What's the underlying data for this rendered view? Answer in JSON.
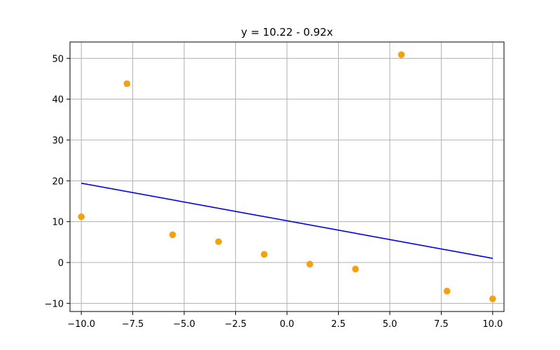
{
  "chart_data": {
    "type": "scatter",
    "title": "y = 10.22 - 0.92x",
    "xlabel": "",
    "ylabel": "",
    "xlim": [
      -10.55,
      10.55
    ],
    "ylim": [
      -12.0,
      54.0
    ],
    "grid": true,
    "x_ticks": [
      -10.0,
      -7.5,
      -5.0,
      -2.5,
      0.0,
      2.5,
      5.0,
      7.5,
      10.0
    ],
    "x_tick_labels": [
      "−10.0",
      "−7.5",
      "−5.0",
      "−2.5",
      "0.0",
      "2.5",
      "5.0",
      "7.5",
      "10.0"
    ],
    "y_ticks": [
      -10,
      0,
      10,
      20,
      30,
      40,
      50
    ],
    "y_tick_labels": [
      "−10",
      "0",
      "10",
      "20",
      "30",
      "40",
      "50"
    ],
    "series": [
      {
        "kind": "scatter",
        "color": "#f5a00e",
        "x": [
          -10.0,
          -7.78,
          -5.56,
          -3.33,
          -1.11,
          1.11,
          3.33,
          5.56,
          7.78,
          10.0
        ],
        "y": [
          11.2,
          43.8,
          6.8,
          5.1,
          2.0,
          -0.4,
          -1.6,
          50.9,
          -7.0,
          -8.9
        ]
      },
      {
        "kind": "line",
        "color": "#0000ee",
        "x": [
          -10.0,
          10.0
        ],
        "y": [
          19.42,
          1.02
        ]
      }
    ]
  }
}
